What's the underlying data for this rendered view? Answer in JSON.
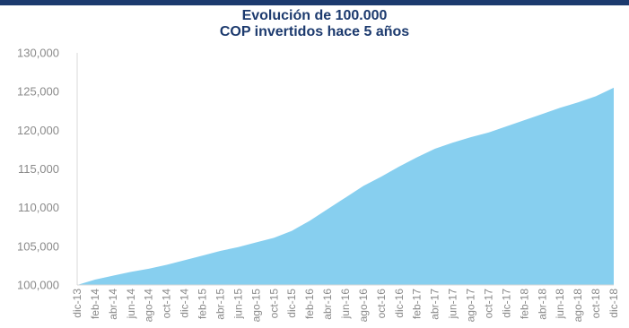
{
  "colors": {
    "header_bar": "#1c3a6e",
    "title": "#1c3a6e",
    "area_fill": "#87cfef",
    "axis_text": "#8a8a8a"
  },
  "chart_data": {
    "type": "area",
    "title_line1": "Evolución de 100.000",
    "title_line2": "COP invertidos hace 5 años",
    "xlabel": "",
    "ylabel": "",
    "ylim": [
      100000,
      130000
    ],
    "yticks": [
      100000,
      105000,
      110000,
      115000,
      120000,
      125000,
      130000
    ],
    "ytick_labels": [
      "100,000",
      "105,000",
      "110,000",
      "115,000",
      "120,000",
      "125,000",
      "130,000"
    ],
    "grid": false,
    "legend": "none",
    "x_tick_labels": [
      "dic-13",
      "feb-14",
      "abr-14",
      "jun-14",
      "ago-14",
      "oct-14",
      "dic-14",
      "feb-15",
      "abr-15",
      "jun-15",
      "ago-15",
      "oct-15",
      "dic-15",
      "feb-16",
      "abr-16",
      "jun-16",
      "ago-16",
      "oct-16",
      "dic-16",
      "feb-17",
      "abr-17",
      "jun-17",
      "ago-17",
      "oct-17",
      "dic-17",
      "feb-18",
      "abr-18",
      "jun-18",
      "ago-18",
      "oct-18",
      "dic-18"
    ],
    "values": [
      100000,
      100700,
      101200,
      101700,
      102100,
      102600,
      103200,
      103800,
      104400,
      104900,
      105500,
      106100,
      107000,
      108300,
      109800,
      111300,
      112800,
      114000,
      115300,
      116500,
      117600,
      118400,
      119100,
      119700,
      120500,
      121300,
      122100,
      122900,
      123600,
      124400,
      125500
    ]
  }
}
